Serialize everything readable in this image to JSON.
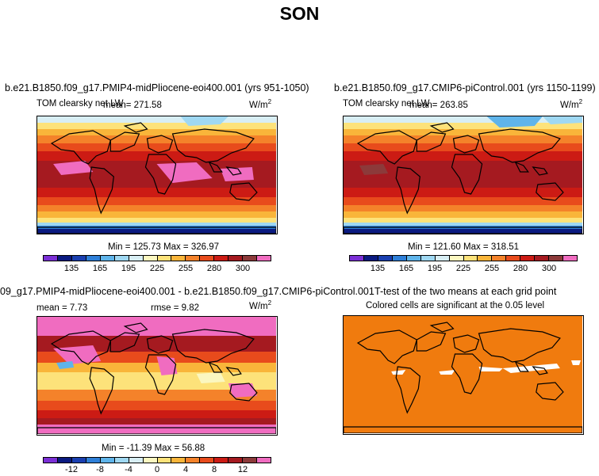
{
  "title": "SON",
  "panels": [
    {
      "title": "b.e21.B1850.f09_g17.PMIP4-midPliocene-eoi400.001 (yrs 951-1050)",
      "variable": "TOM clearsky net LW",
      "mean_label": "mean= 271.58",
      "units": "W/m",
      "units_sup": "2",
      "stats": "Min = 125.73 Max = 326.97",
      "colorbar_ticks": [
        "135",
        "165",
        "195",
        "225",
        "255",
        "280",
        "300"
      ]
    },
    {
      "title": "b.e21.B1850.f09_g17.CMIP6-piControl.001 (yrs 1150-1199)",
      "variable": "TOM clearsky net LW",
      "mean_label": "mean= 263.85",
      "units": "W/m",
      "units_sup": "2",
      "stats": "Min = 121.60 Max = 318.51",
      "colorbar_ticks": [
        "135",
        "165",
        "195",
        "225",
        "255",
        "280",
        "300"
      ]
    },
    {
      "title": "09_g17.PMIP4-midPliocene-eoi400.001 - b.e21.B1850.f09_g17.CMIP6-piControl.001",
      "mean_label": "mean =   7.73",
      "rmse_label": "rmse =   9.82",
      "units": "W/m",
      "units_sup": "2",
      "stats": "Min = -11.39 Max =  56.88",
      "colorbar_ticks": [
        "-12",
        "-8",
        "-4",
        "0",
        "4",
        "8",
        "12"
      ]
    },
    {
      "title": "T-test of the two means at each grid point",
      "subtitle": "Colored cells are significant at the 0.05 level"
    }
  ],
  "colors": {
    "abs_scale": [
      "#7b2fd6",
      "#0a1a80",
      "#1a3fb0",
      "#2e7fd8",
      "#5fb4ea",
      "#9fd8f2",
      "#d8eef4",
      "#fbf7c0",
      "#fde27a",
      "#f9b53a",
      "#f4822a",
      "#e84b1c",
      "#cc1b14",
      "#a51a20",
      "#8c3a3a",
      "#f06cc0"
    ],
    "diff_scale": [
      "#7b2fd6",
      "#0a1a80",
      "#1a3fb0",
      "#2e7fd8",
      "#5fb4ea",
      "#9fd8f2",
      "#d8eef4",
      "#fbf7c0",
      "#fde27a",
      "#f9b53a",
      "#f4822a",
      "#e84b1c",
      "#cc1b14",
      "#a51a20",
      "#8c3a3a",
      "#f06cc0"
    ],
    "ttest_fill": "#f07b0e"
  }
}
